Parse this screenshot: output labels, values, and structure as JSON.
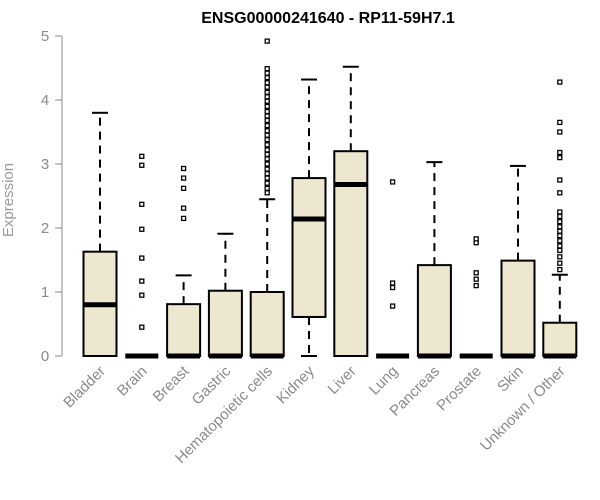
{
  "chart_data": {
    "type": "boxplot",
    "title": "ENSG00000241640 - RP11-59H7.1",
    "ylabel": "Expression",
    "ylim": [
      0,
      5
    ],
    "yticks": [
      0,
      1,
      2,
      3,
      4,
      5
    ],
    "grid": false,
    "legend": "none",
    "box_fill": "#ede7d0",
    "categories": [
      "Bladder",
      "Brain",
      "Breast",
      "Gastric",
      "Hematopoietic cells",
      "Kidney",
      "Liver",
      "Lung",
      "Pancreas",
      "Prostate",
      "Skin",
      "Unknown / Other"
    ],
    "boxes": [
      {
        "category": "Bladder",
        "min": 0,
        "q1": 0,
        "median": 0.8,
        "q3": 1.63,
        "max": 3.8,
        "outliers": []
      },
      {
        "category": "Brain",
        "min": 0,
        "q1": 0,
        "median": 0,
        "q3": 0,
        "max": 0,
        "outliers": [
          0.45,
          0.95,
          1.17,
          1.53,
          1.98,
          2.37,
          2.98,
          3.12
        ]
      },
      {
        "category": "Breast",
        "min": 0,
        "q1": 0,
        "median": 0,
        "q3": 0.81,
        "max": 1.26,
        "outliers": [
          2.15,
          2.31,
          2.62,
          2.78,
          2.93
        ]
      },
      {
        "category": "Gastric",
        "min": 0,
        "q1": 0,
        "median": 0,
        "q3": 1.02,
        "max": 1.91,
        "outliers": []
      },
      {
        "category": "Hematopoietic cells",
        "min": 0,
        "q1": 0,
        "median": 0,
        "q3": 1.0,
        "max": 2.45,
        "outliers": [
          2.55,
          2.62,
          2.7,
          2.78,
          2.85,
          2.92,
          3.0,
          3.08,
          3.15,
          3.22,
          3.3,
          3.38,
          3.45,
          3.52,
          3.6,
          3.68,
          3.75,
          3.82,
          3.9,
          3.98,
          4.05,
          4.12,
          4.2,
          4.27,
          4.35,
          4.42,
          4.49,
          4.92
        ]
      },
      {
        "category": "Kidney",
        "min": 0,
        "q1": 0.61,
        "median": 2.14,
        "q3": 2.78,
        "max": 4.32,
        "outliers": []
      },
      {
        "category": "Liver",
        "min": 0,
        "q1": 0,
        "median": 2.68,
        "q3": 3.2,
        "max": 4.52,
        "outliers": []
      },
      {
        "category": "Lung",
        "min": 0,
        "q1": 0,
        "median": 0,
        "q3": 0,
        "max": 0,
        "outliers": [
          0.78,
          1.07,
          1.14,
          2.72
        ]
      },
      {
        "category": "Pancreas",
        "min": 0,
        "q1": 0,
        "median": 0,
        "q3": 1.42,
        "max": 3.03,
        "outliers": []
      },
      {
        "category": "Prostate",
        "min": 0,
        "q1": 0,
        "median": 0,
        "q3": 0,
        "max": 0,
        "outliers": [
          1.1,
          1.2,
          1.3,
          1.77,
          1.83
        ]
      },
      {
        "category": "Skin",
        "min": 0,
        "q1": 0,
        "median": 0,
        "q3": 1.49,
        "max": 2.97,
        "outliers": []
      },
      {
        "category": "Unknown / Other",
        "min": 0,
        "q1": 0,
        "median": 0,
        "q3": 0.52,
        "max": 1.27,
        "outliers": [
          1.35,
          1.45,
          1.55,
          1.65,
          1.72,
          1.8,
          1.88,
          1.95,
          2.02,
          2.1,
          2.18,
          2.25,
          2.55,
          2.75,
          3.1,
          3.18,
          3.5,
          3.65,
          4.28
        ]
      }
    ]
  }
}
